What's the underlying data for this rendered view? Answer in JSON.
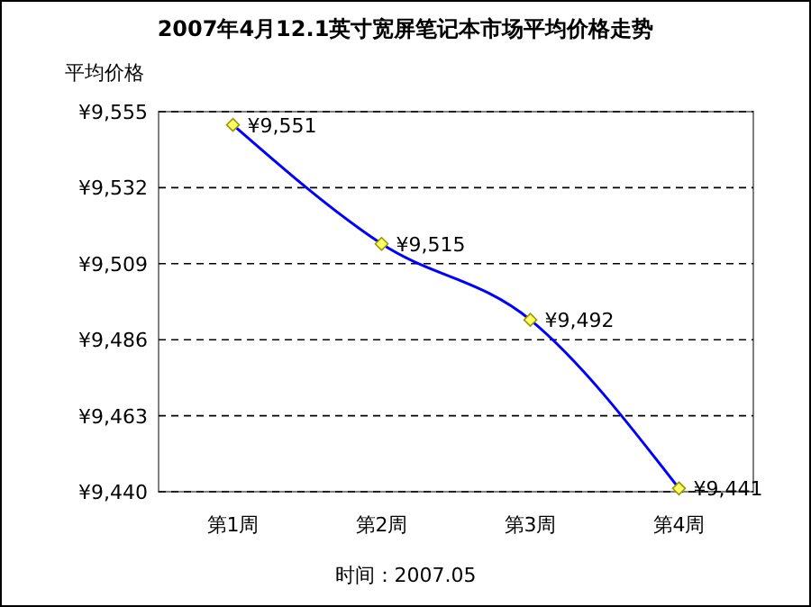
{
  "chart_data": {
    "type": "line",
    "title": "2007年4月12.1英寸宽屏笔记本市场平均价格走势",
    "ylabel": "平均价格",
    "categories": [
      "第1周",
      "第2周",
      "第3周",
      "第4周"
    ],
    "series": [
      {
        "color": "#0000ff",
        "values": [
          9551,
          9515,
          9492,
          9441
        ],
        "value_labels": [
          "¥9,551",
          "¥9,515",
          "¥9,492",
          "¥9,441"
        ]
      }
    ],
    "ylim": [
      9440,
      9555
    ],
    "yticks": [
      {
        "value": 9440,
        "label": "¥9,440"
      },
      {
        "value": 9463,
        "label": "¥9,463"
      },
      {
        "value": 9486,
        "label": "¥9,486"
      },
      {
        "value": 9509,
        "label": "¥9,509"
      },
      {
        "value": 9532,
        "label": "¥9,532"
      },
      {
        "value": 9555,
        "label": "¥9,555"
      }
    ],
    "grid": "y",
    "marker": "diamond",
    "line_style": "solid",
    "annotations": [
      "时间：2007.05"
    ]
  }
}
